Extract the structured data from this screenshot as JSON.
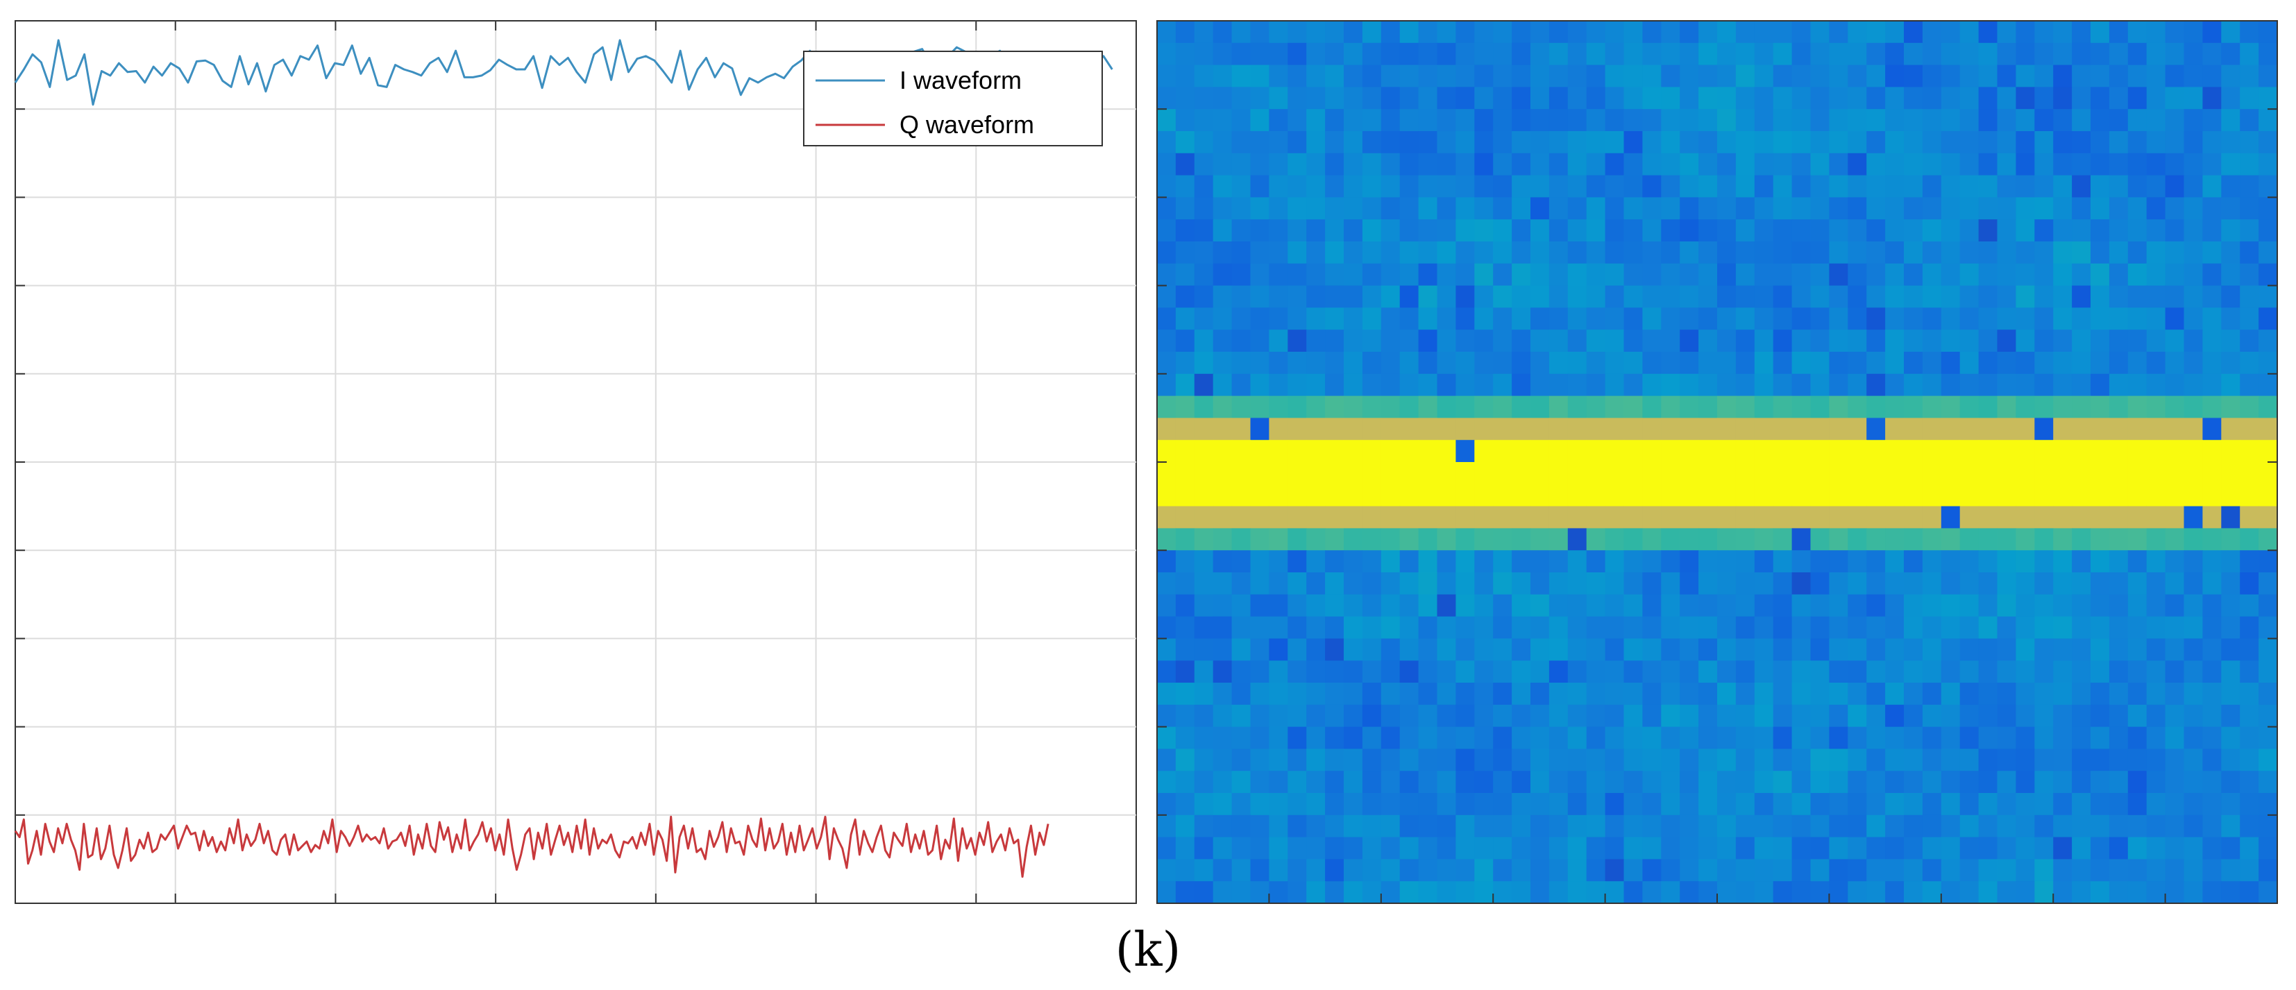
{
  "figure": {
    "caption": "(k)"
  },
  "chart_data": [
    {
      "type": "line",
      "title": "",
      "xlabel": "",
      "ylabel": "",
      "xlim": [
        0,
        7
      ],
      "ylim": [
        0,
        10
      ],
      "grid": true,
      "legend": {
        "placement": "top-right",
        "entries": [
          "I waveform",
          "Q waveform"
        ]
      },
      "colors": {
        "I waveform": "#3d8fc0",
        "Q waveform": "#c8393c"
      },
      "series": [
        {
          "name": "I waveform",
          "values": [
            9.3,
            9.45,
            9.62,
            9.53,
            9.25,
            9.78,
            9.33,
            9.38,
            9.62,
            9.05,
            9.43,
            9.38,
            9.52,
            9.42,
            9.43,
            9.3,
            9.48,
            9.38,
            9.52,
            9.46,
            9.3,
            9.54,
            9.55,
            9.5,
            9.32,
            9.25,
            9.6,
            9.28,
            9.52,
            9.2,
            9.5,
            9.56,
            9.38,
            9.6,
            9.56,
            9.72,
            9.35,
            9.52,
            9.5,
            9.72,
            9.4,
            9.58,
            9.27,
            9.25,
            9.5,
            9.45,
            9.42,
            9.38,
            9.52,
            9.58,
            9.42,
            9.66,
            9.36,
            9.36,
            9.38,
            9.44,
            9.56,
            9.5,
            9.45,
            9.45,
            9.6,
            9.24,
            9.6,
            9.5,
            9.58,
            9.42,
            9.3,
            9.62,
            9.7,
            9.33,
            9.78,
            9.42,
            9.57,
            9.6,
            9.55,
            9.43,
            9.3,
            9.66,
            9.22,
            9.45,
            9.58,
            9.36,
            9.52,
            9.46,
            9.16,
            9.35,
            9.3,
            9.36,
            9.4,
            9.35,
            9.48,
            9.55,
            9.66,
            9.38,
            9.22,
            9.18,
            9.54,
            9.35,
            9.38,
            9.58,
            9.5,
            9.55,
            9.6,
            9.42,
            9.65,
            9.68,
            9.52,
            9.58,
            9.6,
            9.7,
            9.65,
            9.64,
            9.4,
            9.6,
            9.66,
            9.53,
            9.25,
            9.48,
            9.55,
            9.5,
            9.58,
            9.45,
            9.53,
            9.4,
            9.33,
            9.52,
            9.6,
            9.45
          ]
        },
        {
          "name": "Q waveform",
          "values": [
            0.82,
            0.75,
            0.95,
            0.45,
            0.6,
            0.82,
            0.55,
            0.9,
            0.7,
            0.58,
            0.85,
            0.68,
            0.9,
            0.72,
            0.6,
            0.38,
            0.9,
            0.52,
            0.55,
            0.85,
            0.5,
            0.62,
            0.88,
            0.55,
            0.4,
            0.6,
            0.85,
            0.48,
            0.55,
            0.72,
            0.62,
            0.8,
            0.58,
            0.62,
            0.78,
            0.72,
            0.8,
            0.88,
            0.62,
            0.75,
            0.88,
            0.78,
            0.8,
            0.6,
            0.82,
            0.65,
            0.75,
            0.58,
            0.7,
            0.6,
            0.85,
            0.68,
            0.95,
            0.6,
            0.78,
            0.65,
            0.72,
            0.9,
            0.68,
            0.82,
            0.6,
            0.55,
            0.72,
            0.78,
            0.55,
            0.78,
            0.6,
            0.65,
            0.7,
            0.58,
            0.66,
            0.62,
            0.82,
            0.68,
            0.95,
            0.58,
            0.82,
            0.75,
            0.65,
            0.75,
            0.88,
            0.7,
            0.78,
            0.72,
            0.75,
            0.68,
            0.85,
            0.62,
            0.7,
            0.72,
            0.8,
            0.65,
            0.88,
            0.55,
            0.78,
            0.62,
            0.9,
            0.65,
            0.58,
            0.92,
            0.72,
            0.86,
            0.58,
            0.78,
            0.62,
            0.95,
            0.6,
            0.7,
            0.78,
            0.92,
            0.7,
            0.85,
            0.6,
            0.78,
            0.55,
            0.95,
            0.62,
            0.38,
            0.55,
            0.78,
            0.85,
            0.5,
            0.8,
            0.62,
            0.9,
            0.55,
            0.72,
            0.88,
            0.66,
            0.8,
            0.58,
            0.88,
            0.62,
            0.95,
            0.55,
            0.85,
            0.62,
            0.72,
            0.68,
            0.78,
            0.6,
            0.52,
            0.7,
            0.68,
            0.75,
            0.62,
            0.8,
            0.66,
            0.9,
            0.55,
            0.82,
            0.72,
            0.48,
            0.98,
            0.35,
            0.75,
            0.88,
            0.62,
            0.85,
            0.58,
            0.62,
            0.5,
            0.82,
            0.64,
            0.75,
            0.92,
            0.58,
            0.85,
            0.68,
            0.7,
            0.55,
            0.88,
            0.72,
            0.64,
            0.96,
            0.6,
            0.85,
            0.62,
            0.7,
            0.9,
            0.55,
            0.8,
            0.58,
            0.88,
            0.6,
            0.72,
            0.85,
            0.62,
            0.75,
            0.98,
            0.5,
            0.85,
            0.72,
            0.62,
            0.4,
            0.78,
            0.95,
            0.55,
            0.82,
            0.68,
            0.58,
            0.75,
            0.88,
            0.6,
            0.52,
            0.8,
            0.72,
            0.65,
            0.9,
            0.58,
            0.78,
            0.62,
            0.82,
            0.55,
            0.6,
            0.88,
            0.5,
            0.72,
            0.62,
            0.96,
            0.48,
            0.85,
            0.62,
            0.74,
            0.55,
            0.8,
            0.66,
            0.92,
            0.58,
            0.7,
            0.78,
            0.6,
            0.85,
            0.68,
            0.72,
            0.3,
            0.64,
            0.88,
            0.55,
            0.8,
            0.66,
            0.9
          ]
        }
      ]
    },
    {
      "type": "heatmap",
      "title": "",
      "xlabel": "",
      "ylabel": "",
      "rows": 40,
      "cols": 60,
      "xlim": [
        0,
        60
      ],
      "ylim": [
        0,
        40
      ],
      "colormap": "parula",
      "color_range": [
        0,
        1
      ],
      "description": "noise floor with a saturated horizontal band near the vertical center (rows ~18-22)",
      "band_rows": [
        18,
        23
      ],
      "band_value": 1.0,
      "noise_mean": 0.33,
      "noise_amplitude": 0.1
    }
  ]
}
